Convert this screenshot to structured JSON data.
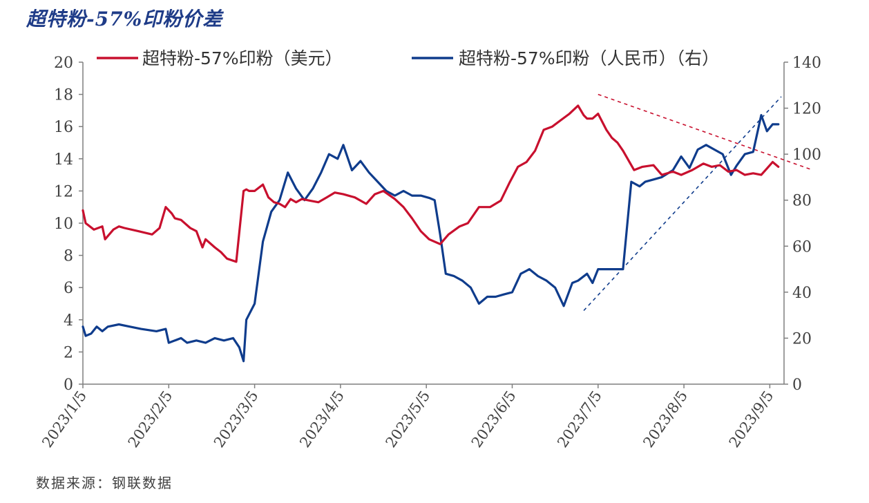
{
  "title": "超特粉-57%印粉价差",
  "source": "数据来源：钢联数据",
  "chart_data": {
    "type": "line",
    "title": "超特粉-57%印粉价差",
    "x_ticks": [
      "2023/1/5",
      "2023/2/5",
      "2023/3/5",
      "2023/4/5",
      "2023/5/5",
      "2023/6/5",
      "2023/7/5",
      "2023/8/5",
      "2023/9/5"
    ],
    "y_left": {
      "min": 0,
      "max": 20,
      "ticks": [
        "0",
        "2",
        "4",
        "6",
        "8",
        "10",
        "12",
        "14",
        "16",
        "18",
        "20"
      ]
    },
    "y_right": {
      "min": 0,
      "max": 140,
      "ticks": [
        "0",
        "20",
        "40",
        "60",
        "80",
        "100",
        "120",
        "140"
      ]
    },
    "grid": false,
    "legend_position": "top",
    "series": [
      {
        "name": "超特粉-57%印粉（美元）",
        "axis": "left",
        "color": "#c8102e",
        "x": [
          "2023/1/5",
          "2023/1/6",
          "2023/1/9",
          "2023/1/12",
          "2023/1/13",
          "2023/1/16",
          "2023/1/18",
          "2023/1/20",
          "2023/1/25",
          "2023/1/30",
          "2023/2/2",
          "2023/2/4",
          "2023/2/6",
          "2023/2/7",
          "2023/2/9",
          "2023/2/12",
          "2023/2/14",
          "2023/2/16",
          "2023/2/17",
          "2023/2/20",
          "2023/2/22",
          "2023/2/24",
          "2023/2/27",
          "2023/3/1",
          "2023/3/2",
          "2023/3/3",
          "2023/3/5",
          "2023/3/8",
          "2023/3/10",
          "2023/3/12",
          "2023/3/14",
          "2023/3/16",
          "2023/3/18",
          "2023/3/20",
          "2023/3/22",
          "2023/3/25",
          "2023/3/28",
          "2023/3/31",
          "2023/4/3",
          "2023/4/6",
          "2023/4/10",
          "2023/4/14",
          "2023/4/17",
          "2023/4/20",
          "2023/4/24",
          "2023/4/27",
          "2023/4/30",
          "2023/5/3",
          "2023/5/6",
          "2023/5/10",
          "2023/5/13",
          "2023/5/17",
          "2023/5/20",
          "2023/5/24",
          "2023/5/28",
          "2023/6/1",
          "2023/6/4",
          "2023/6/7",
          "2023/6/10",
          "2023/6/13",
          "2023/6/16",
          "2023/6/19",
          "2023/6/22",
          "2023/6/25",
          "2023/6/28",
          "2023/6/30",
          "2023/7/1",
          "2023/7/3",
          "2023/7/5",
          "2023/7/8",
          "2023/7/10",
          "2023/7/12",
          "2023/7/14",
          "2023/7/18",
          "2023/7/21",
          "2023/7/25",
          "2023/7/28",
          "2023/8/1",
          "2023/8/4",
          "2023/8/8",
          "2023/8/12",
          "2023/8/15",
          "2023/8/18",
          "2023/8/21",
          "2023/8/24",
          "2023/8/27",
          "2023/8/30",
          "2023/9/2",
          "2023/9/4",
          "2023/9/6",
          "2023/9/8"
        ],
        "values": [
          10.8,
          10.0,
          9.6,
          9.8,
          9.0,
          9.6,
          9.8,
          9.7,
          9.5,
          9.3,
          9.7,
          11.0,
          10.6,
          10.3,
          10.2,
          9.7,
          9.5,
          8.5,
          9.0,
          8.5,
          8.2,
          7.8,
          7.6,
          12.0,
          12.1,
          12.0,
          12.0,
          12.4,
          11.6,
          11.3,
          11.2,
          11.0,
          11.5,
          11.3,
          11.5,
          11.4,
          11.3,
          11.6,
          11.9,
          11.8,
          11.6,
          11.2,
          11.8,
          12.0,
          11.5,
          11.0,
          10.3,
          9.5,
          9.0,
          8.7,
          9.3,
          9.8,
          10.0,
          11.0,
          11.0,
          11.4,
          12.5,
          13.5,
          13.8,
          14.5,
          15.8,
          16.0,
          16.4,
          16.8,
          17.3,
          16.7,
          16.5,
          16.5,
          16.8,
          15.8,
          15.3,
          15.0,
          14.5,
          13.3,
          13.5,
          13.6,
          13.0,
          13.2,
          13.0,
          13.3,
          13.7,
          13.5,
          13.6,
          13.2,
          13.3,
          13.0,
          13.1,
          13.0,
          13.4,
          13.8,
          13.5
        ],
        "trendline": {
          "from": [
            "2023/7/5",
            18.0
          ],
          "to": [
            "2023/9/20",
            13.3
          ],
          "style": "dashed"
        }
      },
      {
        "name": "超特粉-57%印粉（人民币）（右）",
        "axis": "right",
        "color": "#0f3c8c",
        "x": [
          "2023/1/5",
          "2023/1/6",
          "2023/1/8",
          "2023/1/10",
          "2023/1/12",
          "2023/1/14",
          "2023/1/18",
          "2023/1/22",
          "2023/1/26",
          "2023/2/1",
          "2023/2/4",
          "2023/2/5",
          "2023/2/7",
          "2023/2/9",
          "2023/2/11",
          "2023/2/14",
          "2023/2/17",
          "2023/2/20",
          "2023/2/23",
          "2023/2/26",
          "2023/2/28",
          "2023/3/1",
          "2023/3/2",
          "2023/3/5",
          "2023/3/8",
          "2023/3/11",
          "2023/3/14",
          "2023/3/17",
          "2023/3/20",
          "2023/3/23",
          "2023/3/26",
          "2023/3/29",
          "2023/4/1",
          "2023/4/4",
          "2023/4/6",
          "2023/4/9",
          "2023/4/12",
          "2023/4/15",
          "2023/4/18",
          "2023/4/21",
          "2023/4/24",
          "2023/4/27",
          "2023/4/30",
          "2023/5/3",
          "2023/5/6",
          "2023/5/8",
          "2023/5/10",
          "2023/5/12",
          "2023/5/15",
          "2023/5/18",
          "2023/5/21",
          "2023/5/24",
          "2023/5/27",
          "2023/5/30",
          "2023/6/2",
          "2023/6/5",
          "2023/6/8",
          "2023/6/11",
          "2023/6/14",
          "2023/6/17",
          "2023/6/20",
          "2023/6/23",
          "2023/6/26",
          "2023/6/28",
          "2023/7/1",
          "2023/7/3",
          "2023/7/5",
          "2023/7/8",
          "2023/7/11",
          "2023/7/14",
          "2023/7/17",
          "2023/7/20",
          "2023/7/22",
          "2023/7/25",
          "2023/7/28",
          "2023/8/1",
          "2023/8/4",
          "2023/8/7",
          "2023/8/10",
          "2023/8/13",
          "2023/8/16",
          "2023/8/19",
          "2023/8/22",
          "2023/8/24",
          "2023/8/27",
          "2023/8/30",
          "2023/9/2",
          "2023/9/4",
          "2023/9/6",
          "2023/9/8"
        ],
        "values": [
          25,
          21,
          22,
          25,
          23,
          25,
          26,
          25,
          24,
          23,
          24,
          18,
          19,
          20,
          18,
          19,
          18,
          20,
          19,
          20,
          16,
          10,
          28,
          35,
          62,
          75,
          80,
          92,
          85,
          80,
          85,
          92,
          100,
          98,
          104,
          93,
          97,
          92,
          88,
          84,
          82,
          84,
          82,
          82,
          81,
          80,
          65,
          48,
          47,
          45,
          42,
          35,
          38,
          38,
          39,
          40,
          48,
          50,
          47,
          45,
          42,
          34,
          44,
          45,
          48,
          44,
          50,
          50,
          50,
          50,
          88,
          86,
          88,
          89,
          90,
          93,
          99,
          94,
          102,
          104,
          102,
          100,
          91,
          95,
          100,
          101,
          117,
          110,
          113,
          113
        ],
        "trendline": {
          "from": [
            "2023/6/30",
            32.0
          ],
          "to": [
            "2023/9/9",
            125.0
          ],
          "style": "dashed"
        }
      }
    ]
  }
}
